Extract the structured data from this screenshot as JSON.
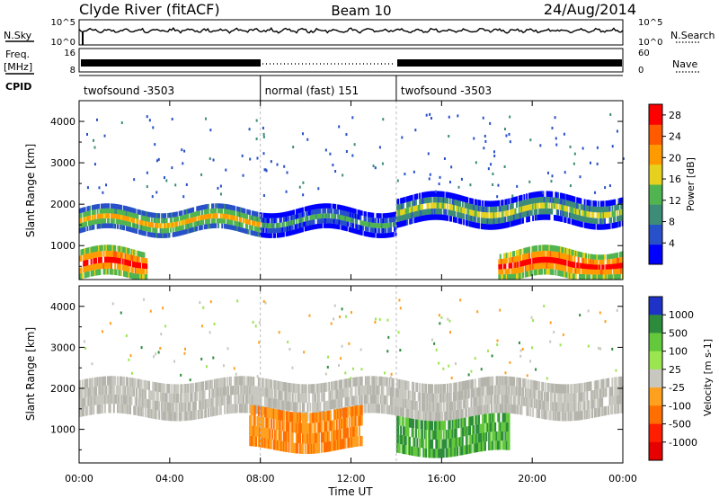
{
  "header": {
    "station": "Clyde River (fitACF)",
    "beam": "Beam 10",
    "date": "24/Aug/2014"
  },
  "strip_labels": {
    "nsky": "N.Sky",
    "nsearch": "N.Search",
    "freq_1": "Freq.",
    "freq_2": "[MHz]",
    "cpid": "CPID",
    "nave": "Nave",
    "nsky_top_tick": "10^5",
    "nsky_bottom_tick": "10^0",
    "freq_top_tick": "16",
    "freq_bottom_tick": "8",
    "nave_top_tick": "60",
    "nave_bottom_tick": "0"
  },
  "cpid_segments": [
    {
      "label": "twofsound -3503",
      "start_hour": 0,
      "end_hour": 8
    },
    {
      "label": "normal (fast) 151",
      "start_hour": 8,
      "end_hour": 14
    },
    {
      "label": "twofsound -3503",
      "start_hour": 14,
      "end_hour": 24
    }
  ],
  "chart_data": [
    {
      "type": "heatmap",
      "panel": "power",
      "xlabel": "Time UT",
      "ylabel": "Slant Range [km]",
      "x_ticks": [
        "00:00",
        "04:00",
        "08:00",
        "12:00",
        "16:00",
        "20:00",
        "00:00"
      ],
      "xlim_hours": [
        0,
        24
      ],
      "y_ticks": [
        1000,
        2000,
        3000,
        4000
      ],
      "ylim": [
        180,
        4500
      ],
      "colorbar": {
        "label": "Power [dB]",
        "ticks": [
          4,
          8,
          12,
          16,
          20,
          24,
          28
        ],
        "range": [
          0,
          30
        ],
        "colors": [
          "#0000ff",
          "#2850c8",
          "#3c8c78",
          "#50b450",
          "#e6d21e",
          "#ff9b00",
          "#ff5a00",
          "#ff0000"
        ]
      },
      "bands": [
        {
          "from_hour": 0,
          "to_hour": 3,
          "range_km": [
            180,
            900
          ],
          "power_db": 28
        },
        {
          "from_hour": 0,
          "to_hour": 8,
          "range_km": [
            1300,
            1900
          ],
          "power_db": 20
        },
        {
          "from_hour": 8,
          "to_hour": 14,
          "range_km": [
            1300,
            1900
          ],
          "power_db": 12
        },
        {
          "from_hour": 14,
          "to_hour": 24,
          "range_km": [
            1500,
            2200
          ],
          "power_db": 16
        },
        {
          "from_hour": 18.5,
          "to_hour": 24,
          "range_km": [
            180,
            900
          ],
          "power_db": 28
        }
      ]
    },
    {
      "type": "heatmap",
      "panel": "velocity",
      "xlabel": "Time UT",
      "ylabel": "Slant Range [km]",
      "x_ticks": [
        "00:00",
        "04:00",
        "08:00",
        "12:00",
        "16:00",
        "20:00",
        "00:00"
      ],
      "xlim_hours": [
        0,
        24
      ],
      "y_ticks": [
        1000,
        2000,
        3000,
        4000
      ],
      "ylim": [
        180,
        4500
      ],
      "colorbar": {
        "label": "Velocity [m s-1]",
        "ticks": [
          "1000",
          "500",
          "100",
          "25",
          "-25",
          "-100",
          "-500",
          "-1000"
        ],
        "colors": [
          "#1e32c8",
          "#2d8c3c",
          "#64c83c",
          "#9be650",
          "#c8c8c0",
          "#ffa01e",
          "#ff6e00",
          "#ff1e00",
          "#e60000"
        ]
      },
      "bands": [
        {
          "from_hour": 0,
          "to_hour": 24,
          "range_km": [
            1300,
            2200
          ],
          "velocity": "ground scatter"
        },
        {
          "from_hour": 7.5,
          "to_hour": 12.5,
          "range_km": [
            500,
            1500
          ],
          "velocity": "-100 to -500"
        },
        {
          "from_hour": 14,
          "to_hour": 19,
          "range_km": [
            400,
            1300
          ],
          "velocity": "100 to 500"
        }
      ]
    }
  ]
}
